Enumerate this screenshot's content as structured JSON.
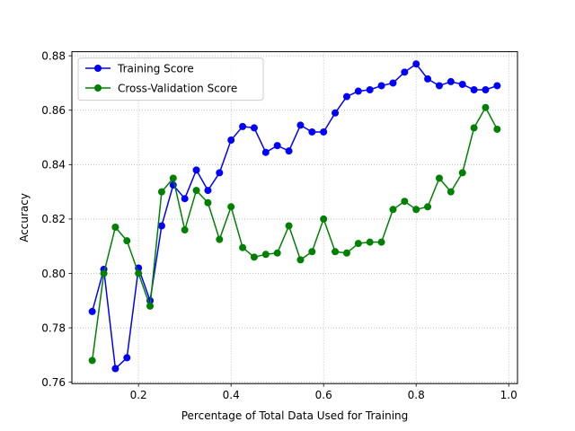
{
  "chart_data": {
    "type": "line",
    "xlabel": "Percentage of Total Data Used for Training",
    "ylabel": "Accuracy",
    "xlim": [
      0.056,
      1.019
    ],
    "ylim": [
      0.7595,
      0.8815
    ],
    "xticks": [
      0.2,
      0.4,
      0.6,
      0.8,
      1.0
    ],
    "xtick_labels": [
      "0.2",
      "0.4",
      "0.6",
      "0.8",
      "1.0"
    ],
    "yticks": [
      0.76,
      0.78,
      0.8,
      0.82,
      0.84,
      0.86,
      0.88
    ],
    "ytick_labels": [
      "0.76",
      "0.78",
      "0.80",
      "0.82",
      "0.84",
      "0.86",
      "0.88"
    ],
    "grid": true,
    "legend_position": "top-left",
    "x": [
      0.1,
      0.125,
      0.15,
      0.175,
      0.2,
      0.225,
      0.25,
      0.275,
      0.3,
      0.325,
      0.35,
      0.375,
      0.4,
      0.425,
      0.45,
      0.475,
      0.5,
      0.525,
      0.55,
      0.575,
      0.6,
      0.625,
      0.65,
      0.675,
      0.7,
      0.725,
      0.75,
      0.775,
      0.8,
      0.825,
      0.85,
      0.875,
      0.9,
      0.925,
      0.95,
      0.975
    ],
    "series": [
      {
        "name": "Training Score",
        "color": "#0000ff",
        "values": [
          0.786,
          0.8015,
          0.765,
          0.769,
          0.802,
          0.79,
          0.8175,
          0.8325,
          0.8275,
          0.838,
          0.8305,
          0.837,
          0.849,
          0.854,
          0.8535,
          0.8445,
          0.847,
          0.845,
          0.8545,
          0.852,
          0.852,
          0.859,
          0.865,
          0.867,
          0.8675,
          0.869,
          0.87,
          0.874,
          0.877,
          0.8715,
          0.869,
          0.8705,
          0.8695,
          0.8675,
          0.8675,
          0.869
        ]
      },
      {
        "name": "Cross-Validation Score",
        "color": "#008000",
        "values": [
          0.768,
          0.8,
          0.817,
          0.812,
          0.8,
          0.788,
          0.83,
          0.835,
          0.816,
          0.8305,
          0.826,
          0.8125,
          0.8245,
          0.8095,
          0.806,
          0.807,
          0.8075,
          0.8175,
          0.805,
          0.808,
          0.82,
          0.808,
          0.8075,
          0.811,
          0.8115,
          0.8115,
          0.8235,
          0.8265,
          0.8235,
          0.8245,
          0.835,
          0.83,
          0.837,
          0.8535,
          0.861,
          0.853
        ]
      }
    ]
  }
}
